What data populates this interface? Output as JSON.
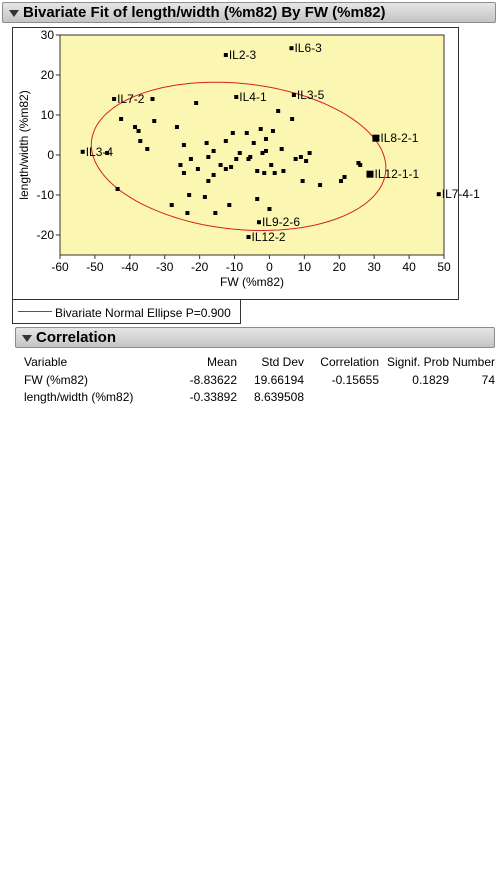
{
  "report": {
    "title": "Bivariate Fit of length/width (%m82) By FW (%m82)",
    "legend_label": "Bivariate Normal Ellipse P=0.900",
    "legend_color": "#d62020",
    "plot_background": "#fbf7b2"
  },
  "correlation": {
    "title": "Correlation",
    "headers": [
      "Variable",
      "Mean",
      "Std Dev",
      "Correlation",
      "Signif. Prob",
      "Number"
    ],
    "rows": [
      [
        "FW (%m82)",
        "-8.83622",
        "19.66194",
        "-0.15655",
        "0.1829",
        "74"
      ],
      [
        "length/width (%m82)",
        "-0.33892",
        "8.639508",
        "",
        "",
        ""
      ]
    ]
  },
  "chart_data": {
    "type": "scatter",
    "xlabel": "FW (%m82)",
    "ylabel": "length/width (%m82)",
    "xlim": [
      -60,
      50
    ],
    "ylim": [
      -25,
      30
    ],
    "xticks": [
      -60,
      -50,
      -40,
      -30,
      -20,
      -10,
      0,
      10,
      20,
      30,
      40,
      50
    ],
    "yticks": [
      -20,
      -10,
      0,
      10,
      20,
      30
    ],
    "ellipse": {
      "label": "Bivariate Normal Ellipse P=0.900",
      "probability": 0.9,
      "mean_x": -8.83622,
      "mean_y": -0.33892,
      "std_x": 19.66194,
      "std_y": 8.639508,
      "correlation": -0.15655
    },
    "labeled_points": [
      {
        "label": "IL6-3",
        "x": 6.3,
        "y": 26.7
      },
      {
        "label": "IL2-3",
        "x": -12.5,
        "y": 25.0
      },
      {
        "label": "IL7-2",
        "x": -44.5,
        "y": 14.0
      },
      {
        "label": "IL4-1",
        "x": -9.5,
        "y": 14.5
      },
      {
        "label": "IL3-5",
        "x": 7.0,
        "y": 15.0
      },
      {
        "label": "IL8-2-1",
        "x": 30.5,
        "y": 4.2
      },
      {
        "label": "IL3-4",
        "x": -53.5,
        "y": 0.8
      },
      {
        "label": "IL12-1-1",
        "x": 28.8,
        "y": -4.8
      },
      {
        "label": "IL7-4-1",
        "x": 48.5,
        "y": -9.8
      },
      {
        "label": "IL9-2-6",
        "x": -3.0,
        "y": -16.8
      },
      {
        "label": "IL12-2",
        "x": -6.0,
        "y": -20.5
      }
    ],
    "points": [
      {
        "x": -46.5,
        "y": 0.5
      },
      {
        "x": -43.5,
        "y": -8.5
      },
      {
        "x": -42.5,
        "y": 9.0
      },
      {
        "x": -38.5,
        "y": 7.0
      },
      {
        "x": -37.5,
        "y": 6.0
      },
      {
        "x": -37.0,
        "y": 3.5
      },
      {
        "x": -35.0,
        "y": 1.5
      },
      {
        "x": -33.5,
        "y": 14.0
      },
      {
        "x": -33.0,
        "y": 8.5
      },
      {
        "x": -28.0,
        "y": -12.5
      },
      {
        "x": -26.5,
        "y": 7.0
      },
      {
        "x": -25.5,
        "y": -2.5
      },
      {
        "x": -24.5,
        "y": 2.5
      },
      {
        "x": -24.5,
        "y": -4.5
      },
      {
        "x": -23.5,
        "y": -14.5
      },
      {
        "x": -23.0,
        "y": -10.0
      },
      {
        "x": -22.5,
        "y": -1.0
      },
      {
        "x": -21.0,
        "y": 13.0
      },
      {
        "x": -20.5,
        "y": -3.5
      },
      {
        "x": -18.5,
        "y": -10.5
      },
      {
        "x": -18.0,
        "y": 3.0
      },
      {
        "x": -17.5,
        "y": -0.5
      },
      {
        "x": -17.5,
        "y": -6.5
      },
      {
        "x": -16.0,
        "y": -5.0
      },
      {
        "x": -16.0,
        "y": 1.0
      },
      {
        "x": -15.5,
        "y": -14.5
      },
      {
        "x": -14.0,
        "y": -2.5
      },
      {
        "x": -12.5,
        "y": 3.5
      },
      {
        "x": -12.5,
        "y": -3.5
      },
      {
        "x": -11.5,
        "y": -12.5
      },
      {
        "x": -11.0,
        "y": -3.0
      },
      {
        "x": -10.5,
        "y": 5.5
      },
      {
        "x": -9.5,
        "y": -1.0
      },
      {
        "x": -8.5,
        "y": 0.5
      },
      {
        "x": -6.5,
        "y": 5.5
      },
      {
        "x": -6.0,
        "y": -1.0
      },
      {
        "x": -5.5,
        "y": -0.5
      },
      {
        "x": -4.5,
        "y": 3.0
      },
      {
        "x": -3.5,
        "y": -4.0
      },
      {
        "x": -3.5,
        "y": -11.0
      },
      {
        "x": -2.5,
        "y": 6.5
      },
      {
        "x": -2.0,
        "y": 0.5
      },
      {
        "x": -1.5,
        "y": -4.5
      },
      {
        "x": -1.0,
        "y": 1.0
      },
      {
        "x": -1.0,
        "y": 4.0
      },
      {
        "x": 0.0,
        "y": -13.5
      },
      {
        "x": 0.5,
        "y": -2.5
      },
      {
        "x": 1.0,
        "y": 6.0
      },
      {
        "x": 1.5,
        "y": -4.5
      },
      {
        "x": 2.5,
        "y": 11.0
      },
      {
        "x": 3.5,
        "y": 1.5
      },
      {
        "x": 4.0,
        "y": -4.0
      },
      {
        "x": 6.5,
        "y": 9.0
      },
      {
        "x": 7.5,
        "y": -1.0
      },
      {
        "x": 9.0,
        "y": -0.5
      },
      {
        "x": 9.5,
        "y": -6.5
      },
      {
        "x": 10.5,
        "y": -1.5
      },
      {
        "x": 11.5,
        "y": 0.5
      },
      {
        "x": 14.5,
        "y": -7.5
      },
      {
        "x": 20.5,
        "y": -6.5
      },
      {
        "x": 21.5,
        "y": -5.5
      },
      {
        "x": 25.5,
        "y": -2.0
      },
      {
        "x": 26.0,
        "y": -2.5
      }
    ]
  }
}
